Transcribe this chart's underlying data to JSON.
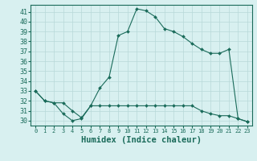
{
  "xlabel": "Humidex (Indice chaleur)",
  "xlim": [
    -0.5,
    23.5
  ],
  "ylim": [
    29.5,
    41.7
  ],
  "yticks": [
    30,
    31,
    32,
    33,
    34,
    35,
    36,
    37,
    38,
    39,
    40,
    41
  ],
  "xticks": [
    0,
    1,
    2,
    3,
    4,
    5,
    6,
    7,
    8,
    9,
    10,
    11,
    12,
    13,
    14,
    15,
    16,
    17,
    18,
    19,
    20,
    21,
    22,
    23
  ],
  "upper_x": [
    0,
    1,
    2,
    3,
    4,
    5,
    6,
    7,
    8,
    9,
    10,
    11,
    12,
    13,
    14,
    15,
    16,
    17,
    18,
    19,
    20,
    21,
    22,
    23
  ],
  "upper_y": [
    33.0,
    32.0,
    31.8,
    30.7,
    30.0,
    30.2,
    31.5,
    33.3,
    34.4,
    38.6,
    39.0,
    41.3,
    41.1,
    40.5,
    39.3,
    39.0,
    38.5,
    37.8,
    37.2,
    36.8,
    36.8,
    37.2,
    30.2,
    29.9
  ],
  "lower_x": [
    0,
    1,
    2,
    3,
    4,
    5,
    6,
    7,
    8,
    9,
    10,
    11,
    12,
    13,
    14,
    15,
    16,
    17,
    18,
    19,
    20,
    21,
    22,
    23
  ],
  "lower_y": [
    33.0,
    32.0,
    31.8,
    31.8,
    31.0,
    30.3,
    31.5,
    31.5,
    31.5,
    31.5,
    31.5,
    31.5,
    31.5,
    31.5,
    31.5,
    31.5,
    31.5,
    31.5,
    31.0,
    30.7,
    30.5,
    30.5,
    30.2,
    29.9
  ],
  "line_color": "#1a6b5a",
  "bg_color": "#d8f0f0",
  "grid_color": "#b8d8d8"
}
